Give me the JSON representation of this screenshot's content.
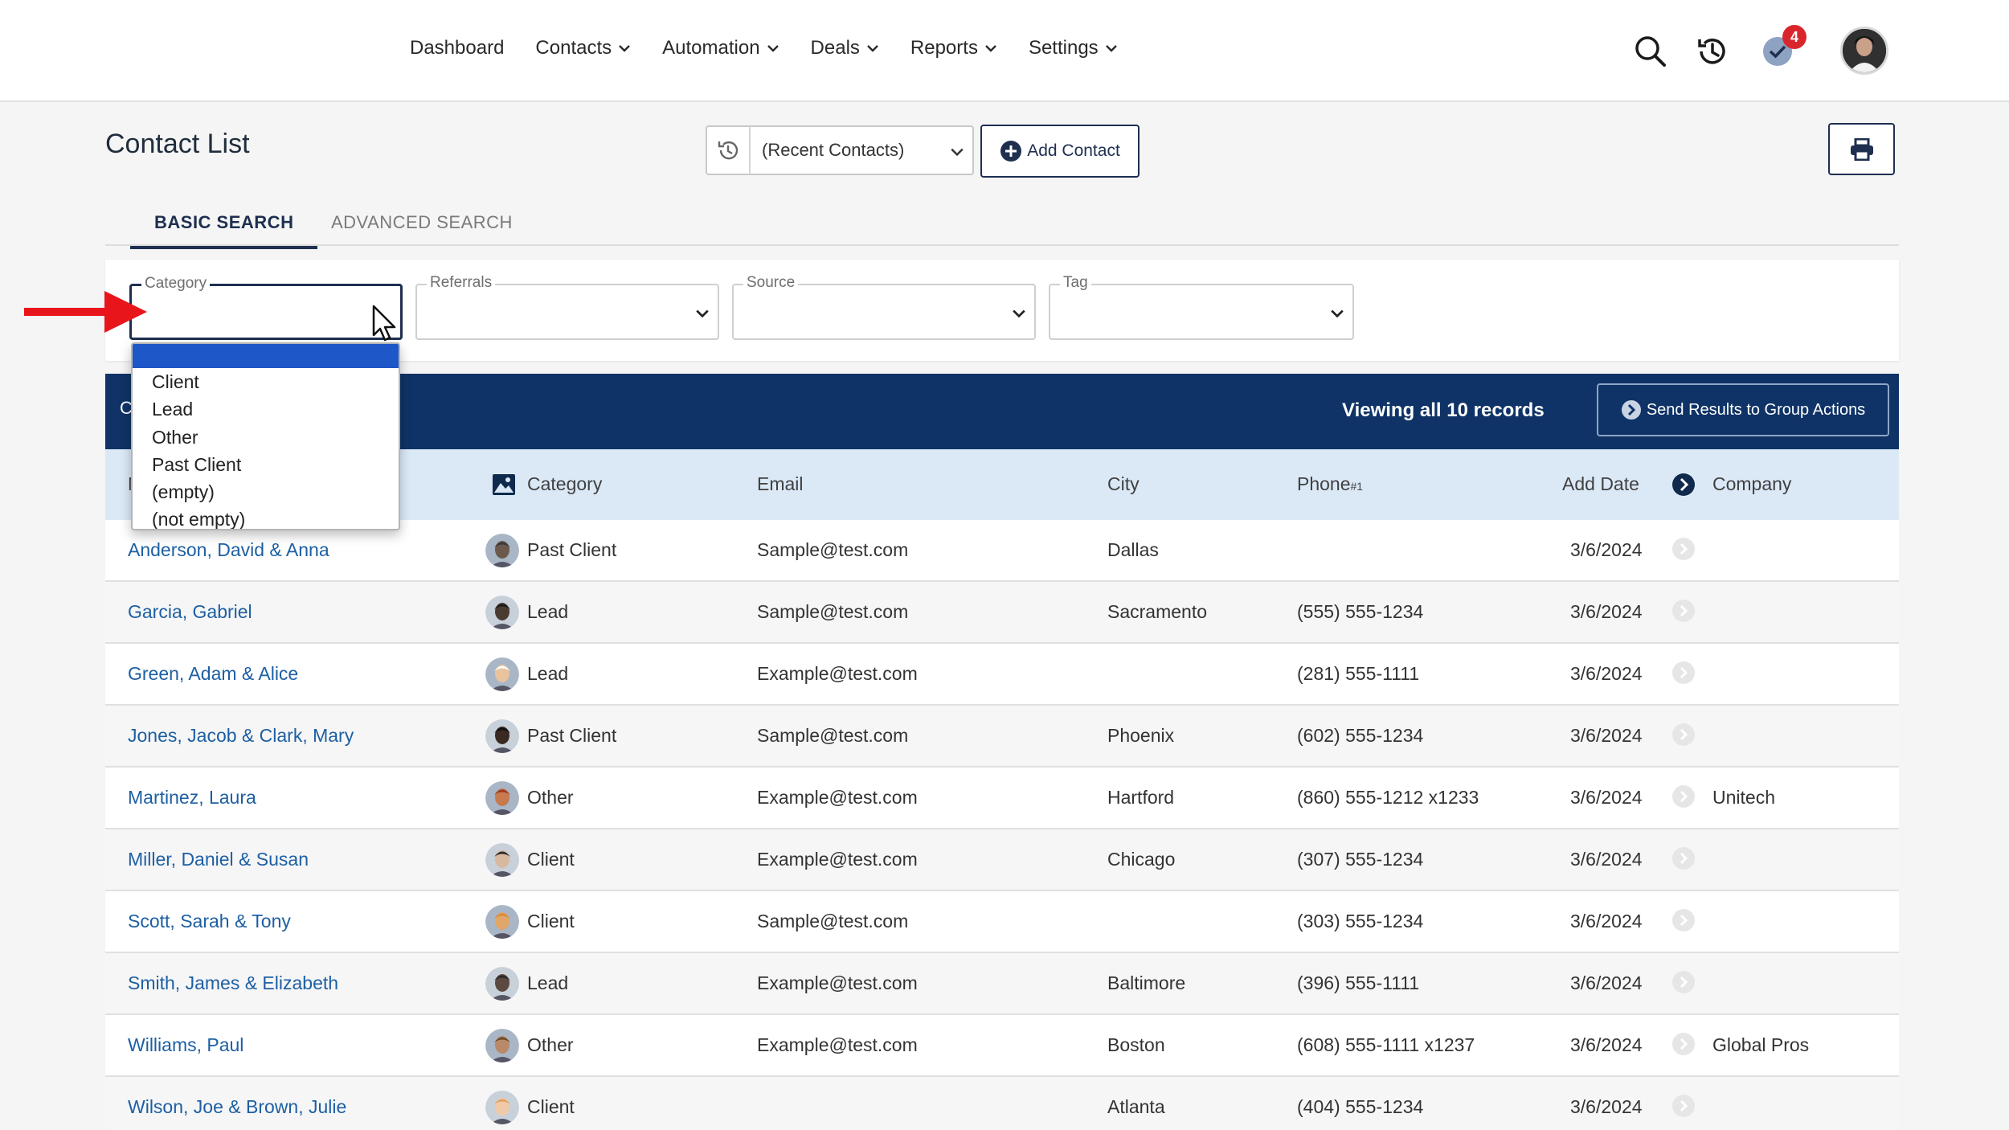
{
  "nav": {
    "items": [
      {
        "label": "Dashboard",
        "dropdown": false
      },
      {
        "label": "Contacts",
        "dropdown": true
      },
      {
        "label": "Automation",
        "dropdown": true
      },
      {
        "label": "Deals",
        "dropdown": true
      },
      {
        "label": "Reports",
        "dropdown": true
      },
      {
        "label": "Settings",
        "dropdown": true
      }
    ],
    "notification_count": "4"
  },
  "page": {
    "title": "Contact List",
    "recent_select": "(Recent Contacts)",
    "add_contact": "Add Contact"
  },
  "tabs": {
    "basic": "BASIC SEARCH",
    "advanced": "ADVANCED SEARCH"
  },
  "filters": {
    "category": "Category",
    "referrals": "Referrals",
    "source": "Source",
    "tag": "Tag"
  },
  "category_dropdown": {
    "options": [
      "Client",
      "Lead",
      "Other",
      "Past Client",
      "(empty)",
      "(not empty)"
    ]
  },
  "results": {
    "clipped_label": "C",
    "viewing": "Viewing all 10 records",
    "send_button": "Send Results to Group Actions"
  },
  "table": {
    "headers": {
      "name_clipped": "N",
      "category": "Category",
      "email": "Email",
      "city": "City",
      "phone": "Phone",
      "phone_sup": "#1",
      "add_date": "Add Date",
      "company": "Company"
    },
    "rows": [
      {
        "name": "Anderson, David & Anna",
        "category": "Past Client",
        "email": "Sample@test.com",
        "city": "Dallas",
        "phone": "",
        "date": "3/6/2024",
        "company": ""
      },
      {
        "name": "Garcia, Gabriel",
        "category": "Lead",
        "email": "Sample@test.com",
        "city": "Sacramento",
        "phone": "(555) 555-1234",
        "date": "3/6/2024",
        "company": ""
      },
      {
        "name": "Green, Adam & Alice",
        "category": "Lead",
        "email": "Example@test.com",
        "city": "",
        "phone": "(281) 555-1111",
        "date": "3/6/2024",
        "company": ""
      },
      {
        "name": "Jones, Jacob & Clark, Mary",
        "category": "Past Client",
        "email": "Sample@test.com",
        "city": "Phoenix",
        "phone": "(602) 555-1234",
        "date": "3/6/2024",
        "company": ""
      },
      {
        "name": "Martinez, Laura",
        "category": "Other",
        "email": "Example@test.com",
        "city": "Hartford",
        "phone": "(860) 555-1212 x1233",
        "date": "3/6/2024",
        "company": "Unitech"
      },
      {
        "name": "Miller, Daniel & Susan",
        "category": "Client",
        "email": "Example@test.com",
        "city": "Chicago",
        "phone": "(307) 555-1234",
        "date": "3/6/2024",
        "company": ""
      },
      {
        "name": "Scott, Sarah & Tony",
        "category": "Client",
        "email": "Sample@test.com",
        "city": "",
        "phone": "(303) 555-1234",
        "date": "3/6/2024",
        "company": ""
      },
      {
        "name": "Smith, James & Elizabeth",
        "category": "Lead",
        "email": "Example@test.com",
        "city": "Baltimore",
        "phone": "(396) 555-1111",
        "date": "3/6/2024",
        "company": ""
      },
      {
        "name": "Williams, Paul",
        "category": "Other",
        "email": "Example@test.com",
        "city": "Boston",
        "phone": "(608) 555-1111 x1237",
        "date": "3/6/2024",
        "company": "Global Pros"
      },
      {
        "name": "Wilson, Joe & Brown, Julie",
        "category": "Client",
        "email": "",
        "city": "Atlanta",
        "phone": "(404) 555-1234",
        "date": "3/6/2024",
        "company": ""
      }
    ]
  },
  "colors": {
    "navy": "#0f3366",
    "header_blue": "#dbe9f7",
    "link_blue": "#1d5fa3",
    "badge_red": "#d9262c",
    "annotation_red": "#e8151b",
    "dropdown_selected": "#1e57c7"
  }
}
